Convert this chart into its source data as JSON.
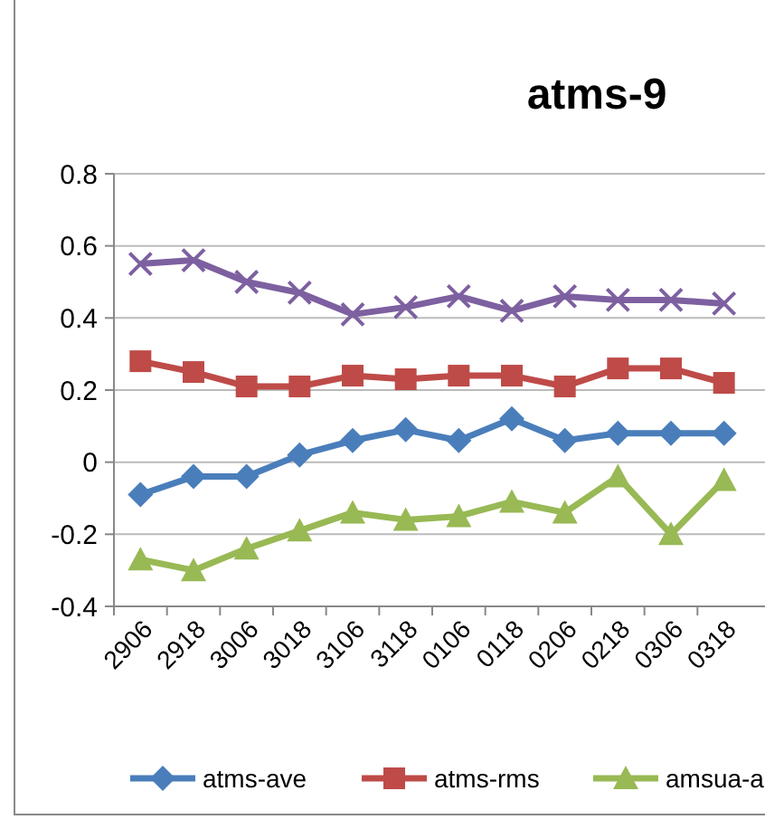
{
  "chart_data": {
    "type": "line",
    "title": "atms-9",
    "categories": [
      "2906",
      "2918",
      "3006",
      "3018",
      "3106",
      "3118",
      "0106",
      "0118",
      "0206",
      "0218",
      "0306",
      "0318"
    ],
    "series": [
      {
        "name": "atms-ave",
        "color": "#4a7ebb",
        "marker": "diamond",
        "values": [
          -0.09,
          -0.04,
          -0.04,
          0.02,
          0.06,
          0.09,
          0.06,
          0.12,
          0.06,
          0.08,
          0.08,
          0.08
        ]
      },
      {
        "name": "atms-rms",
        "color": "#be4b48",
        "marker": "square",
        "values": [
          0.28,
          0.25,
          0.21,
          0.21,
          0.24,
          0.23,
          0.24,
          0.24,
          0.21,
          0.26,
          0.26,
          0.22
        ]
      },
      {
        "name": "amsua-a",
        "color": "#98b954",
        "marker": "triangle",
        "values": [
          -0.27,
          -0.3,
          -0.24,
          -0.19,
          -0.14,
          -0.16,
          -0.15,
          -0.11,
          -0.14,
          -0.04,
          -0.2,
          -0.05
        ]
      },
      {
        "color": "#7d60a0",
        "marker": "cross",
        "values": [
          0.55,
          0.56,
          0.5,
          0.47,
          0.41,
          0.43,
          0.46,
          0.42,
          0.46,
          0.45,
          0.45,
          0.44
        ]
      }
    ],
    "ylim": [
      -0.4,
      0.8
    ],
    "yticks": [
      {
        "value": -0.4,
        "label": "-0.4"
      },
      {
        "value": -0.2,
        "label": "-0.2"
      },
      0,
      {
        "value": 0.2,
        "label": "0.2"
      },
      {
        "value": 0.4,
        "label": "0.4"
      },
      {
        "value": 0.6,
        "label": "0.6"
      },
      {
        "value": 0.8,
        "label": "0.8"
      }
    ],
    "grid": "y",
    "legend": "bottom"
  }
}
